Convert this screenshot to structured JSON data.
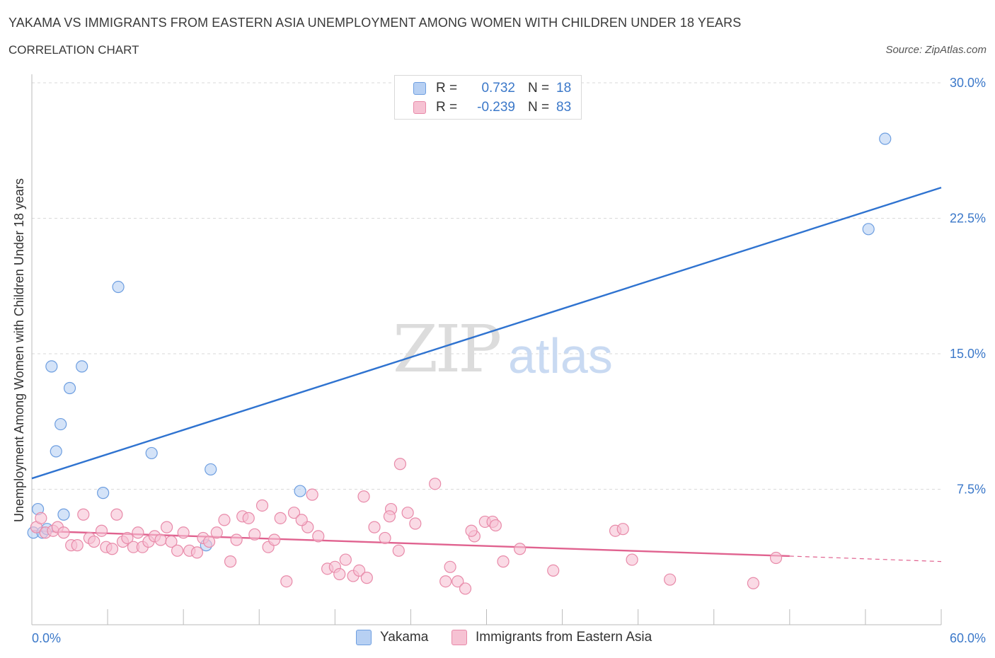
{
  "header": {
    "title": "YAKAMA VS IMMIGRANTS FROM EASTERN ASIA UNEMPLOYMENT AMONG WOMEN WITH CHILDREN UNDER 18 YEARS",
    "subtitle": "CORRELATION CHART",
    "source": "Source: ZipAtlas.com"
  },
  "legend": {
    "series": [
      {
        "r_label": "R =",
        "r_value": "0.732",
        "n_label": "N =",
        "n_value": "18"
      },
      {
        "r_label": "R =",
        "r_value": "-0.239",
        "n_label": "N =",
        "n_value": "83"
      }
    ]
  },
  "watermark": {
    "zip": "ZIP",
    "atlas": "atlas"
  },
  "colors": {
    "yakama_fill": "#b7d0f3",
    "yakama_stroke": "#6d9ee0",
    "yakama_line": "#2f73d0",
    "asia_fill": "#f6c2d3",
    "asia_stroke": "#e88aa9",
    "asia_line": "#e0628f",
    "tick_label": "#3b78c9",
    "grid": "#d9d9d9"
  },
  "chart_data": {
    "type": "scatter",
    "title": "YAKAMA VS IMMIGRANTS FROM EASTERN ASIA UNEMPLOYMENT AMONG WOMEN WITH CHILDREN UNDER 18 YEARS",
    "xlabel": "",
    "ylabel": "Unemployment Among Women with Children Under 18 years",
    "xlim": [
      0,
      60
    ],
    "ylim": [
      0,
      30
    ],
    "x_tick_labels": [
      "0.0%",
      "60.0%"
    ],
    "y_ticks": [
      7.5,
      15.0,
      22.5,
      30.0
    ],
    "y_tick_labels": [
      "7.5%",
      "15.0%",
      "22.5%",
      "30.0%"
    ],
    "grid": true,
    "legend_position": "top-center",
    "series": [
      {
        "name": "Yakama",
        "r": 0.732,
        "n": 18,
        "points": [
          [
            0.1,
            5.1
          ],
          [
            0.4,
            6.4
          ],
          [
            0.7,
            5.1
          ],
          [
            1.0,
            5.3
          ],
          [
            1.3,
            14.3
          ],
          [
            1.6,
            9.6
          ],
          [
            1.9,
            11.1
          ],
          [
            2.1,
            6.1
          ],
          [
            2.5,
            13.1
          ],
          [
            3.3,
            14.3
          ],
          [
            4.7,
            7.3
          ],
          [
            5.7,
            18.7
          ],
          [
            7.9,
            9.5
          ],
          [
            11.5,
            4.4
          ],
          [
            11.8,
            8.6
          ],
          [
            17.7,
            7.4
          ],
          [
            55.2,
            21.9
          ],
          [
            56.3,
            26.9
          ]
        ],
        "trend": {
          "x": [
            0,
            60
          ],
          "y": [
            8.1,
            24.2
          ]
        }
      },
      {
        "name": "Immigrants from Eastern Asia",
        "r": -0.239,
        "n": 83,
        "points": [
          [
            0.3,
            5.4
          ],
          [
            0.6,
            5.9
          ],
          [
            0.9,
            5.1
          ],
          [
            1.4,
            5.2
          ],
          [
            1.7,
            5.4
          ],
          [
            2.1,
            5.1
          ],
          [
            2.6,
            4.4
          ],
          [
            3.0,
            4.4
          ],
          [
            3.4,
            6.1
          ],
          [
            3.8,
            4.8
          ],
          [
            4.1,
            4.6
          ],
          [
            4.6,
            5.2
          ],
          [
            4.9,
            4.3
          ],
          [
            5.3,
            4.2
          ],
          [
            5.6,
            6.1
          ],
          [
            6.0,
            4.6
          ],
          [
            6.3,
            4.8
          ],
          [
            6.7,
            4.3
          ],
          [
            7.0,
            5.1
          ],
          [
            7.3,
            4.3
          ],
          [
            7.7,
            4.6
          ],
          [
            8.1,
            4.9
          ],
          [
            8.5,
            4.7
          ],
          [
            8.9,
            5.4
          ],
          [
            9.2,
            4.6
          ],
          [
            9.6,
            4.1
          ],
          [
            10.0,
            5.1
          ],
          [
            10.4,
            4.1
          ],
          [
            10.9,
            4.0
          ],
          [
            11.3,
            4.8
          ],
          [
            11.7,
            4.6
          ],
          [
            12.2,
            5.1
          ],
          [
            12.7,
            5.8
          ],
          [
            13.1,
            3.5
          ],
          [
            13.5,
            4.7
          ],
          [
            13.9,
            6.0
          ],
          [
            14.3,
            5.9
          ],
          [
            14.7,
            5.0
          ],
          [
            15.2,
            6.6
          ],
          [
            15.6,
            4.3
          ],
          [
            16.0,
            4.7
          ],
          [
            16.4,
            5.9
          ],
          [
            16.8,
            2.4
          ],
          [
            17.3,
            6.2
          ],
          [
            18.2,
            5.4
          ],
          [
            18.5,
            7.2
          ],
          [
            18.9,
            4.9
          ],
          [
            19.5,
            3.1
          ],
          [
            20.0,
            3.2
          ],
          [
            20.3,
            2.8
          ],
          [
            20.7,
            3.6
          ],
          [
            21.2,
            2.7
          ],
          [
            21.6,
            3.0
          ],
          [
            22.1,
            2.6
          ],
          [
            22.6,
            5.4
          ],
          [
            23.3,
            4.8
          ],
          [
            23.7,
            6.4
          ],
          [
            24.2,
            4.1
          ],
          [
            24.8,
            6.2
          ],
          [
            25.3,
            5.6
          ],
          [
            26.6,
            7.8
          ],
          [
            27.3,
            2.4
          ],
          [
            27.6,
            3.2
          ],
          [
            28.1,
            2.4
          ],
          [
            28.6,
            2.0
          ],
          [
            29.2,
            4.9
          ],
          [
            29.9,
            5.7
          ],
          [
            30.4,
            5.7
          ],
          [
            31.1,
            3.5
          ],
          [
            32.2,
            4.2
          ],
          [
            34.4,
            3.0
          ],
          [
            38.5,
            5.2
          ],
          [
            39.0,
            5.3
          ],
          [
            39.6,
            3.6
          ],
          [
            42.1,
            2.5
          ],
          [
            47.6,
            2.3
          ],
          [
            49.1,
            3.7
          ],
          [
            30.6,
            5.5
          ],
          [
            29.0,
            5.2
          ],
          [
            24.3,
            8.9
          ],
          [
            21.9,
            7.1
          ],
          [
            17.8,
            5.8
          ],
          [
            23.6,
            6.0
          ]
        ],
        "trend": {
          "x": [
            0,
            50
          ],
          "y": [
            5.2,
            3.8
          ]
        },
        "trend_dashed": {
          "x": [
            50,
            60
          ],
          "y": [
            3.8,
            3.5
          ]
        }
      }
    ]
  },
  "bottom_legend": {
    "items": [
      {
        "label": "Yakama"
      },
      {
        "label": "Immigrants from Eastern Asia"
      }
    ]
  }
}
